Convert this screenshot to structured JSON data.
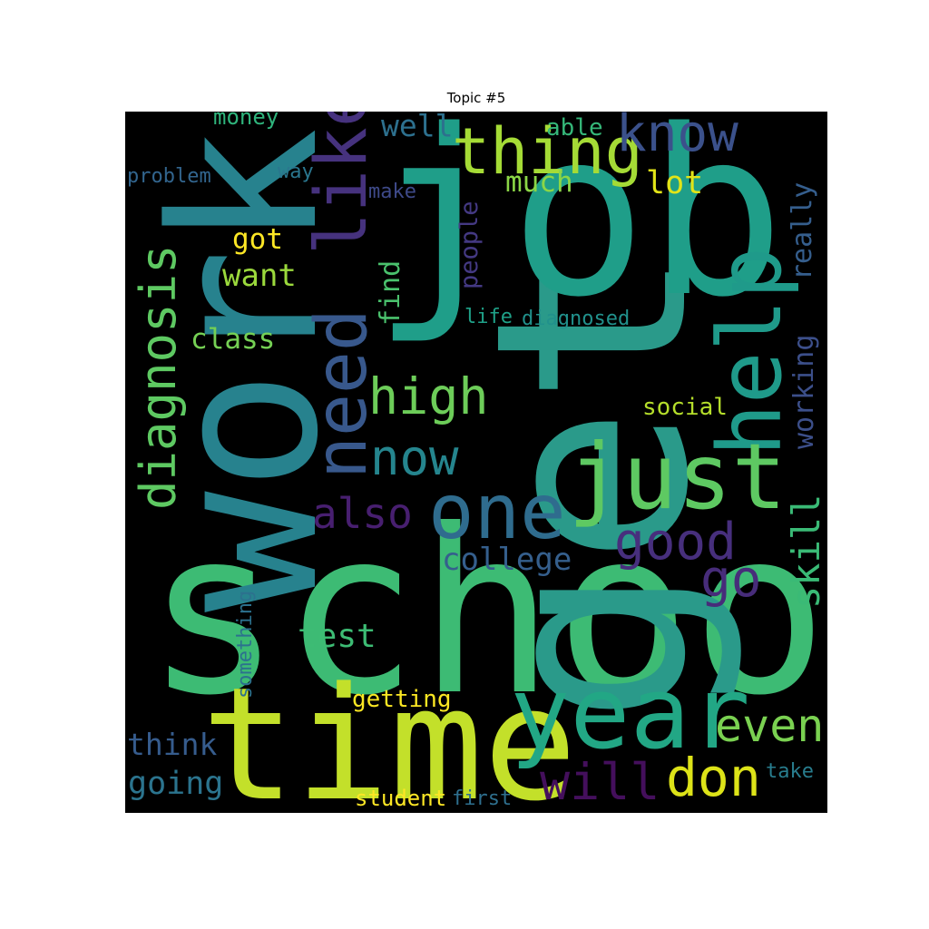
{
  "title": "Topic #5",
  "words": [
    {
      "text": "school",
      "color": "#3dbb74"
    },
    {
      "text": "get",
      "color": "#2a9a8a"
    },
    {
      "text": "job",
      "color": "#1f9e89"
    },
    {
      "text": "work",
      "color": "#27828e"
    },
    {
      "text": "time",
      "color": "#c3e02a"
    },
    {
      "text": "year",
      "color": "#22a785"
    },
    {
      "text": "like",
      "color": "#46327e"
    },
    {
      "text": "need",
      "color": "#38588c"
    },
    {
      "text": "help",
      "color": "#1f9a8a"
    },
    {
      "text": "just",
      "color": "#5ec962"
    },
    {
      "text": "one",
      "color": "#2f6c8e"
    },
    {
      "text": "thing",
      "color": "#a5db36"
    },
    {
      "text": "know",
      "color": "#3b518b"
    },
    {
      "text": "diagnosis",
      "color": "#5ec962"
    },
    {
      "text": "high",
      "color": "#6dcd59"
    },
    {
      "text": "now",
      "color": "#25858e"
    },
    {
      "text": "also",
      "color": "#481f70"
    },
    {
      "text": "good",
      "color": "#472f7d"
    },
    {
      "text": "go",
      "color": "#472c7a"
    },
    {
      "text": "skill",
      "color": "#3aba76"
    },
    {
      "text": "even",
      "color": "#7ad151"
    },
    {
      "text": "don",
      "color": "#dde318"
    },
    {
      "text": "will",
      "color": "#440f5c"
    },
    {
      "text": "well",
      "color": "#2d708e"
    },
    {
      "text": "money",
      "color": "#2fb47c"
    },
    {
      "text": "problem",
      "color": "#32658e"
    },
    {
      "text": "way",
      "color": "#2a768e"
    },
    {
      "text": "make",
      "color": "#3e4a89"
    },
    {
      "text": "able",
      "color": "#35b779"
    },
    {
      "text": "much",
      "color": "#8bd646"
    },
    {
      "text": "lot",
      "color": "#e2e418"
    },
    {
      "text": "really",
      "color": "#355e8d"
    },
    {
      "text": "got",
      "color": "#fde725"
    },
    {
      "text": "want",
      "color": "#9bd93c"
    },
    {
      "text": "people",
      "color": "#443983"
    },
    {
      "text": "find",
      "color": "#4ac16d"
    },
    {
      "text": "life",
      "color": "#1fa188"
    },
    {
      "text": "diagnosed",
      "color": "#21918c"
    },
    {
      "text": "class",
      "color": "#75d054"
    },
    {
      "text": "working",
      "color": "#3c4f8a"
    },
    {
      "text": "social",
      "color": "#b5de2b"
    },
    {
      "text": "college",
      "color": "#355f8d"
    },
    {
      "text": "test",
      "color": "#3dbc74"
    },
    {
      "text": "something",
      "color": "#2c718e"
    },
    {
      "text": "getting",
      "color": "#fbe723"
    },
    {
      "text": "think",
      "color": "#365c8d"
    },
    {
      "text": "going",
      "color": "#2b748e"
    },
    {
      "text": "student",
      "color": "#fde725"
    },
    {
      "text": "first",
      "color": "#2e6f8e"
    },
    {
      "text": "take",
      "color": "#287d8e"
    }
  ]
}
